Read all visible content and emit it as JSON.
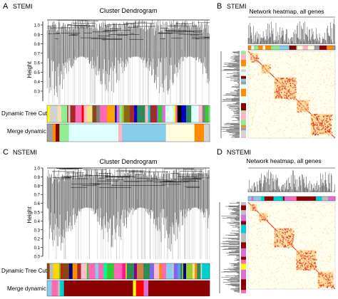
{
  "panels": [
    {
      "letter": "A",
      "group": "STEMI",
      "title": "Cluster Dendrogram",
      "y_axis_label": "Height",
      "y_ticks": [
        "1.0",
        "0.9",
        "0.8",
        "0.7",
        "0.6",
        "0.5",
        "0.4",
        "0.3"
      ],
      "color_bar_labels": [
        "Dynamic Tree Cut",
        "Merge dynamic"
      ]
    },
    {
      "letter": "B",
      "group": "STEMI",
      "title": "Network heatmap, all genes"
    },
    {
      "letter": "C",
      "group": "NSTEMI",
      "title": "Cluster Dendrogram",
      "y_axis_label": "Height",
      "y_ticks": [
        "1.0",
        "0.9",
        "0.8",
        "0.7",
        "0.6",
        "0.5",
        "0.4",
        "0.3",
        "0.2",
        "0.1",
        "0.0"
      ],
      "color_bar_labels": [
        "Dynamic Tree Cut",
        "Merge dynamic"
      ]
    },
    {
      "letter": "D",
      "group": "NSTEMI",
      "title": "Network heatmap, all genes"
    }
  ],
  "module_colors": {
    "dynamic_stemi": [
      "#8B6914",
      "#BEBEBE",
      "#87CEEB",
      "#FF8C00",
      "#2E8B57",
      "#DA70D6",
      "#F0E68C",
      "#000000",
      "#FFC0CB",
      "#4169E1",
      "#FF0000",
      "#90EE90",
      "#E0FFFF",
      "#8B4513",
      "#0000CD",
      "#FFFF00",
      "#00CED1",
      "#808080",
      "#9ACD32",
      "#FFB6C1",
      "#00BFFF",
      "#A52A2A",
      "#D3D3D3",
      "#7B68EE",
      "#32CD32",
      "#F5DEB3",
      "#FF69B4",
      "#20B2AA",
      "#FFA500"
    ],
    "merge_stemi": [
      "#9E9E9E",
      "#FF8C00",
      "#8B0000",
      "#90EE90",
      "#E0FFFF",
      "#FFB6C1",
      "#87CEEB",
      "#FFFFE0",
      "#FF8C00",
      "#D3D3D3"
    ],
    "dynamic_nstemi": [
      "#00CED1",
      "#FF69B4",
      "#BEBEBE",
      "#87CEEB",
      "#2E8B57",
      "#FF0000",
      "#FFFF00",
      "#8B4513",
      "#90EE90",
      "#000080",
      "#DA70D6",
      "#FFC0CB",
      "#00BFFF",
      "#A52A2A",
      "#9ACD32",
      "#F0E68C",
      "#7B68EE",
      "#FF8C00",
      "#E0FFFF",
      "#D3D3D3",
      "#32CD32",
      "#FF1493",
      "#4682B4",
      "#FFD700",
      "#8B008B",
      "#00FA9A",
      "#CD853F",
      "#6495ED"
    ],
    "merge_nstemi": [
      "#87CEEB",
      "#FF69B4",
      "#BEBEBE",
      "#00CED1",
      "#8B0000",
      "#FFFF00",
      "#FF0000",
      "#DA70D6",
      "#8B0000"
    ],
    "heat_low": "#FFFFF0",
    "heat_mid": "#FFD27F",
    "heat_high": "#E0301E"
  }
}
